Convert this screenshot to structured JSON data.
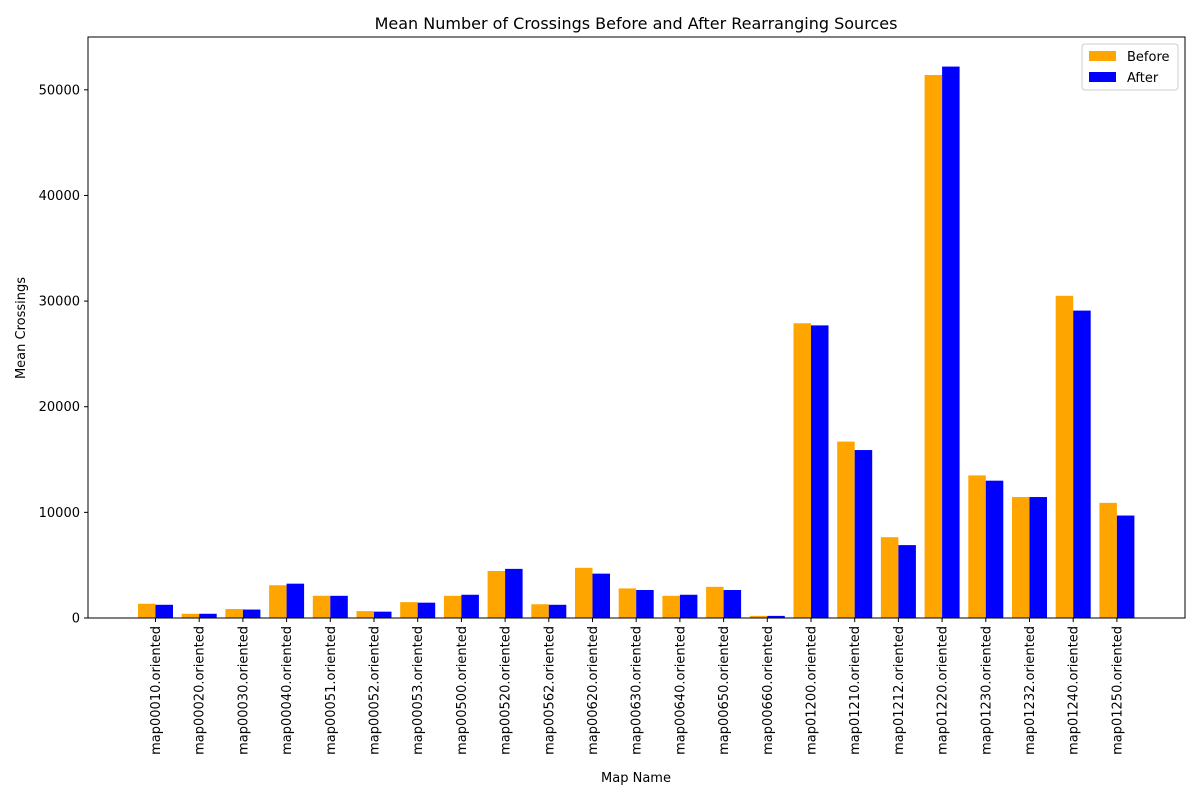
{
  "chart_data": {
    "type": "bar",
    "title": "Mean Number of Crossings Before and After Rearranging Sources",
    "xlabel": "Map Name",
    "ylabel": "Mean Crossings",
    "ylim": [
      0,
      55000
    ],
    "yticks": [
      0,
      10000,
      20000,
      30000,
      40000,
      50000
    ],
    "grid": false,
    "legend_position": "top-right",
    "categories": [
      "map00010.oriented",
      "map00020.oriented",
      "map00030.oriented",
      "map00040.oriented",
      "map00051.oriented",
      "map00052.oriented",
      "map00053.oriented",
      "map00500.oriented",
      "map00520.oriented",
      "map00562.oriented",
      "map00620.oriented",
      "map00630.oriented",
      "map00640.oriented",
      "map00650.oriented",
      "map00660.oriented",
      "map01200.oriented",
      "map01210.oriented",
      "map01212.oriented",
      "map01220.oriented",
      "map01230.oriented",
      "map01232.oriented",
      "map01240.oriented",
      "map01250.oriented"
    ],
    "series": [
      {
        "name": "Before",
        "color": "#ffa500",
        "values": [
          1350,
          400,
          850,
          3100,
          2100,
          650,
          1500,
          2100,
          4450,
          1300,
          4750,
          2800,
          2100,
          2950,
          200,
          27900,
          16700,
          7650,
          51400,
          13500,
          11450,
          30500,
          10900
        ]
      },
      {
        "name": "After",
        "color": "#0000ff",
        "values": [
          1250,
          400,
          800,
          3250,
          2100,
          600,
          1450,
          2200,
          4650,
          1250,
          4200,
          2650,
          2200,
          2650,
          200,
          27700,
          15900,
          6900,
          52200,
          13000,
          11450,
          29100,
          9700
        ]
      }
    ]
  }
}
